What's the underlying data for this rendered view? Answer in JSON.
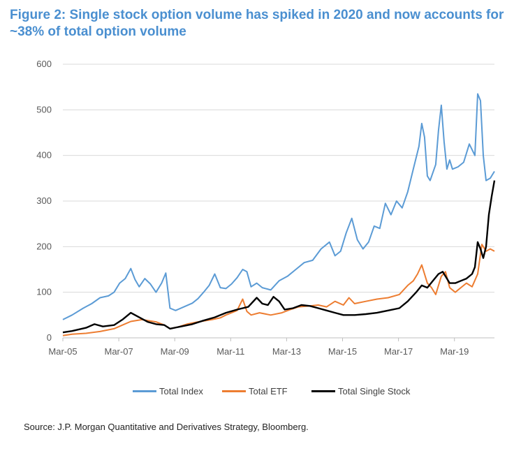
{
  "title": "Figure 2: Single stock option volume has spiked in 2020 and now accounts for ~38% of total option volume",
  "source": "Source: J.P. Morgan Quantitative and Derivatives Strategy, Bloomberg.",
  "chart_data": {
    "type": "line",
    "title": "Figure 2: Single stock option volume has spiked in 2020 and now accounts for ~38% of total option volume",
    "xlabel": "",
    "ylabel": "",
    "ylim": [
      0,
      600
    ],
    "yticks": [
      0,
      100,
      200,
      300,
      400,
      500,
      600
    ],
    "xlim": [
      2005.17,
      2020.6
    ],
    "xticks": [
      {
        "label": "Mar-05",
        "value": 2005.17
      },
      {
        "label": "Mar-07",
        "value": 2007.17
      },
      {
        "label": "Mar-09",
        "value": 2009.17
      },
      {
        "label": "Mar-11",
        "value": 2011.17
      },
      {
        "label": "Mar-13",
        "value": 2013.17
      },
      {
        "label": "Mar-15",
        "value": 2015.17
      },
      {
        "label": "Mar-17",
        "value": 2017.17
      },
      {
        "label": "Mar-19",
        "value": 2019.17
      }
    ],
    "grid": true,
    "legend_position": "bottom",
    "series": [
      {
        "name": "Total Index",
        "color": "#5b9bd5",
        "x": [
          2005.17,
          2005.5,
          2005.9,
          2006.2,
          2006.5,
          2006.8,
          2007.0,
          2007.2,
          2007.4,
          2007.6,
          2007.75,
          2007.9,
          2008.1,
          2008.3,
          2008.5,
          2008.7,
          2008.85,
          2009.0,
          2009.2,
          2009.5,
          2009.8,
          2010.0,
          2010.2,
          2010.4,
          2010.6,
          2010.8,
          2011.0,
          2011.2,
          2011.4,
          2011.6,
          2011.75,
          2011.9,
          2012.1,
          2012.3,
          2012.6,
          2012.9,
          2013.2,
          2013.5,
          2013.8,
          2014.1,
          2014.4,
          2014.7,
          2014.9,
          2015.1,
          2015.3,
          2015.5,
          2015.7,
          2015.9,
          2016.1,
          2016.3,
          2016.5,
          2016.7,
          2016.9,
          2017.1,
          2017.3,
          2017.5,
          2017.7,
          2017.9,
          2018.0,
          2018.1,
          2018.2,
          2018.3,
          2018.5,
          2018.6,
          2018.7,
          2018.8,
          2018.9,
          2019.0,
          2019.1,
          2019.3,
          2019.5,
          2019.7,
          2019.9,
          2020.0,
          2020.1,
          2020.2,
          2020.3,
          2020.45,
          2020.6
        ],
        "values": [
          40,
          50,
          65,
          75,
          88,
          92,
          100,
          120,
          130,
          152,
          128,
          112,
          130,
          118,
          100,
          120,
          142,
          65,
          60,
          68,
          76,
          86,
          100,
          115,
          140,
          110,
          108,
          118,
          132,
          150,
          145,
          112,
          120,
          110,
          105,
          125,
          135,
          150,
          165,
          170,
          195,
          210,
          180,
          190,
          230,
          262,
          215,
          195,
          210,
          245,
          240,
          295,
          270,
          300,
          285,
          320,
          370,
          420,
          470,
          440,
          355,
          345,
          380,
          455,
          510,
          430,
          370,
          390,
          370,
          375,
          385,
          425,
          400,
          535,
          520,
          400,
          345,
          350,
          365
        ]
      },
      {
        "name": "Total ETF",
        "color": "#ed7d31",
        "x": [
          2005.17,
          2005.5,
          2006.0,
          2006.5,
          2007.0,
          2007.3,
          2007.6,
          2008.0,
          2008.5,
          2008.8,
          2009.0,
          2009.3,
          2009.6,
          2010.0,
          2010.5,
          2010.8,
          2011.0,
          2011.4,
          2011.6,
          2011.75,
          2011.9,
          2012.2,
          2012.6,
          2013.0,
          2013.3,
          2013.6,
          2014.0,
          2014.3,
          2014.6,
          2014.9,
          2015.2,
          2015.4,
          2015.6,
          2016.0,
          2016.4,
          2016.8,
          2017.2,
          2017.5,
          2017.7,
          2017.85,
          2018.0,
          2018.2,
          2018.35,
          2018.5,
          2018.7,
          2018.85,
          2019.0,
          2019.2,
          2019.4,
          2019.6,
          2019.8,
          2020.0,
          2020.15,
          2020.3,
          2020.45,
          2020.6
        ],
        "values": [
          5,
          8,
          10,
          14,
          20,
          28,
          36,
          40,
          35,
          28,
          20,
          24,
          30,
          35,
          40,
          44,
          50,
          60,
          85,
          58,
          50,
          55,
          50,
          55,
          62,
          68,
          70,
          72,
          68,
          80,
          72,
          88,
          75,
          80,
          85,
          88,
          95,
          115,
          125,
          140,
          160,
          120,
          110,
          95,
          135,
          145,
          110,
          100,
          110,
          120,
          112,
          140,
          205,
          190,
          195,
          190
        ]
      },
      {
        "name": "Total Single Stock",
        "color": "#000000",
        "x": [
          2005.17,
          2005.5,
          2006.0,
          2006.3,
          2006.6,
          2007.0,
          2007.3,
          2007.6,
          2007.9,
          2008.2,
          2008.5,
          2008.8,
          2009.0,
          2009.4,
          2009.8,
          2010.2,
          2010.6,
          2011.0,
          2011.4,
          2011.8,
          2012.1,
          2012.3,
          2012.5,
          2012.7,
          2012.9,
          2013.1,
          2013.4,
          2013.7,
          2014.0,
          2014.3,
          2014.6,
          2014.9,
          2015.2,
          2015.6,
          2016.0,
          2016.4,
          2016.8,
          2017.2,
          2017.5,
          2017.8,
          2018.0,
          2018.2,
          2018.4,
          2018.6,
          2018.75,
          2018.85,
          2019.0,
          2019.2,
          2019.4,
          2019.6,
          2019.8,
          2019.9,
          2020.0,
          2020.1,
          2020.2,
          2020.3,
          2020.4,
          2020.5,
          2020.6
        ],
        "values": [
          12,
          15,
          22,
          30,
          25,
          28,
          40,
          55,
          45,
          35,
          30,
          28,
          20,
          25,
          30,
          38,
          45,
          55,
          62,
          68,
          88,
          75,
          72,
          90,
          80,
          62,
          65,
          72,
          70,
          65,
          60,
          55,
          50,
          50,
          52,
          55,
          60,
          65,
          80,
          100,
          115,
          110,
          125,
          140,
          145,
          135,
          120,
          120,
          125,
          130,
          140,
          155,
          210,
          195,
          175,
          200,
          270,
          310,
          345
        ]
      }
    ]
  }
}
